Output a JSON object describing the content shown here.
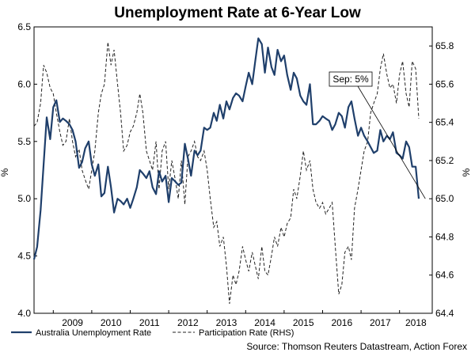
{
  "chart_data": {
    "type": "line",
    "title": "Unemployment Rate at 6-Year Low",
    "y_left_label": "%",
    "y_right_label": "%",
    "y_left_lim": [
      4.0,
      6.5
    ],
    "y_right_lim": [
      64.4,
      65.9
    ],
    "y_left_ticks": [
      "4.0",
      "4.5",
      "5.0",
      "5.5",
      "6.0",
      "6.5"
    ],
    "y_right_ticks": [
      "64.4",
      "64.6",
      "64.8",
      "65.0",
      "65.2",
      "65.4",
      "65.6",
      "65.8"
    ],
    "x_lim": [
      2008.5,
      2018.85
    ],
    "x_ticks": [
      "2009",
      "2010",
      "2011",
      "2012",
      "2013",
      "2014",
      "2015",
      "2016",
      "2017",
      "2018"
    ],
    "grid": false,
    "legend_position": "bottom",
    "source": "Source: Thomson Reuters Datastream, Action Forex",
    "annotation": {
      "label": "Sep: 5%",
      "point": [
        2018.67,
        5.0
      ]
    },
    "series": [
      {
        "name": "Australia Unemployment Rate",
        "axis": "left",
        "style": "solid",
        "color": "#1f3f6b",
        "points": [
          [
            2008.5,
            4.47
          ],
          [
            2008.58,
            4.58
          ],
          [
            2008.67,
            4.9
          ],
          [
            2008.75,
            5.3
          ],
          [
            2008.83,
            5.71
          ],
          [
            2008.92,
            5.52
          ],
          [
            2009.0,
            5.8
          ],
          [
            2009.08,
            5.86
          ],
          [
            2009.17,
            5.67
          ],
          [
            2009.25,
            5.7
          ],
          [
            2009.33,
            5.68
          ],
          [
            2009.42,
            5.65
          ],
          [
            2009.5,
            5.6
          ],
          [
            2009.58,
            5.5
          ],
          [
            2009.67,
            5.27
          ],
          [
            2009.75,
            5.32
          ],
          [
            2009.83,
            5.44
          ],
          [
            2009.92,
            5.5
          ],
          [
            2010.0,
            5.3
          ],
          [
            2010.08,
            5.2
          ],
          [
            2010.17,
            5.3
          ],
          [
            2010.25,
            5.02
          ],
          [
            2010.33,
            5.05
          ],
          [
            2010.42,
            5.28
          ],
          [
            2010.5,
            5.1
          ],
          [
            2010.58,
            4.88
          ],
          [
            2010.67,
            5.0
          ],
          [
            2010.75,
            4.98
          ],
          [
            2010.83,
            4.95
          ],
          [
            2010.92,
            5.0
          ],
          [
            2011.0,
            4.92
          ],
          [
            2011.08,
            5.0
          ],
          [
            2011.17,
            5.1
          ],
          [
            2011.25,
            5.25
          ],
          [
            2011.33,
            5.22
          ],
          [
            2011.42,
            5.18
          ],
          [
            2011.5,
            5.24
          ],
          [
            2011.58,
            5.1
          ],
          [
            2011.67,
            5.04
          ],
          [
            2011.75,
            5.24
          ],
          [
            2011.83,
            5.15
          ],
          [
            2011.92,
            5.2
          ],
          [
            2012.0,
            4.97
          ],
          [
            2012.08,
            5.18
          ],
          [
            2012.17,
            5.15
          ],
          [
            2012.25,
            5.12
          ],
          [
            2012.33,
            5.14
          ],
          [
            2012.42,
            5.48
          ],
          [
            2012.5,
            5.35
          ],
          [
            2012.58,
            5.2
          ],
          [
            2012.67,
            5.42
          ],
          [
            2012.75,
            5.38
          ],
          [
            2012.83,
            5.42
          ],
          [
            2012.92,
            5.62
          ],
          [
            2013.0,
            5.6
          ],
          [
            2013.08,
            5.62
          ],
          [
            2013.17,
            5.75
          ],
          [
            2013.25,
            5.68
          ],
          [
            2013.33,
            5.82
          ],
          [
            2013.42,
            5.7
          ],
          [
            2013.5,
            5.85
          ],
          [
            2013.58,
            5.78
          ],
          [
            2013.67,
            5.88
          ],
          [
            2013.75,
            5.92
          ],
          [
            2013.83,
            5.9
          ],
          [
            2013.92,
            5.85
          ],
          [
            2014.0,
            5.98
          ],
          [
            2014.08,
            6.1
          ],
          [
            2014.17,
            6.0
          ],
          [
            2014.25,
            6.2
          ],
          [
            2014.33,
            6.4
          ],
          [
            2014.42,
            6.35
          ],
          [
            2014.5,
            6.1
          ],
          [
            2014.58,
            6.32
          ],
          [
            2014.67,
            6.15
          ],
          [
            2014.75,
            6.08
          ],
          [
            2014.83,
            6.3
          ],
          [
            2014.92,
            6.2
          ],
          [
            2015.0,
            6.25
          ],
          [
            2015.08,
            6.08
          ],
          [
            2015.17,
            5.95
          ],
          [
            2015.25,
            6.1
          ],
          [
            2015.33,
            6.05
          ],
          [
            2015.42,
            5.9
          ],
          [
            2015.5,
            5.85
          ],
          [
            2015.58,
            5.82
          ],
          [
            2015.67,
            6.0
          ],
          [
            2015.75,
            5.65
          ],
          [
            2015.83,
            5.65
          ],
          [
            2015.92,
            5.68
          ],
          [
            2016.0,
            5.72
          ],
          [
            2016.08,
            5.7
          ],
          [
            2016.17,
            5.68
          ],
          [
            2016.25,
            5.6
          ],
          [
            2016.33,
            5.65
          ],
          [
            2016.42,
            5.75
          ],
          [
            2016.5,
            5.72
          ],
          [
            2016.58,
            5.62
          ],
          [
            2016.67,
            5.8
          ],
          [
            2016.75,
            5.85
          ],
          [
            2016.83,
            5.7
          ],
          [
            2016.92,
            5.55
          ],
          [
            2017.0,
            5.62
          ],
          [
            2017.08,
            5.55
          ],
          [
            2017.17,
            5.5
          ],
          [
            2017.25,
            5.45
          ],
          [
            2017.33,
            5.4
          ],
          [
            2017.42,
            5.42
          ],
          [
            2017.5,
            5.6
          ],
          [
            2017.58,
            5.5
          ],
          [
            2017.67,
            5.55
          ],
          [
            2017.75,
            5.52
          ],
          [
            2017.83,
            5.58
          ],
          [
            2017.92,
            5.4
          ],
          [
            2018.0,
            5.38
          ],
          [
            2018.08,
            5.35
          ],
          [
            2018.17,
            5.5
          ],
          [
            2018.25,
            5.45
          ],
          [
            2018.33,
            5.28
          ],
          [
            2018.42,
            5.28
          ],
          [
            2018.5,
            5.0
          ]
        ]
      },
      {
        "name": "Participation Rate (RHS)",
        "axis": "right",
        "style": "dashed",
        "color": "#222222",
        "points": [
          [
            2008.5,
            65.38
          ],
          [
            2008.58,
            65.4
          ],
          [
            2008.67,
            65.5
          ],
          [
            2008.75,
            65.7
          ],
          [
            2008.83,
            65.66
          ],
          [
            2008.92,
            65.58
          ],
          [
            2009.0,
            65.55
          ],
          [
            2009.08,
            65.45
          ],
          [
            2009.17,
            65.35
          ],
          [
            2009.25,
            65.28
          ],
          [
            2009.33,
            65.3
          ],
          [
            2009.42,
            65.42
          ],
          [
            2009.5,
            65.3
          ],
          [
            2009.58,
            65.22
          ],
          [
            2009.67,
            65.26
          ],
          [
            2009.75,
            65.15
          ],
          [
            2009.83,
            65.1
          ],
          [
            2009.92,
            65.05
          ],
          [
            2010.0,
            65.15
          ],
          [
            2010.08,
            65.25
          ],
          [
            2010.17,
            65.45
          ],
          [
            2010.25,
            65.55
          ],
          [
            2010.33,
            65.6
          ],
          [
            2010.42,
            65.82
          ],
          [
            2010.5,
            65.7
          ],
          [
            2010.58,
            65.78
          ],
          [
            2010.67,
            65.6
          ],
          [
            2010.75,
            65.45
          ],
          [
            2010.83,
            65.25
          ],
          [
            2010.92,
            65.28
          ],
          [
            2011.0,
            65.35
          ],
          [
            2011.08,
            65.38
          ],
          [
            2011.17,
            65.45
          ],
          [
            2011.25,
            65.55
          ],
          [
            2011.33,
            65.45
          ],
          [
            2011.42,
            65.25
          ],
          [
            2011.5,
            65.2
          ],
          [
            2011.58,
            65.15
          ],
          [
            2011.67,
            65.3
          ],
          [
            2011.75,
            65.05
          ],
          [
            2011.83,
            65.25
          ],
          [
            2011.92,
            65.3
          ],
          [
            2012.0,
            65.05
          ],
          [
            2012.08,
            65.2
          ],
          [
            2012.17,
            65.1
          ],
          [
            2012.25,
            65.0
          ],
          [
            2012.33,
            65.2
          ],
          [
            2012.42,
            64.97
          ],
          [
            2012.5,
            65.22
          ],
          [
            2012.58,
            65.25
          ],
          [
            2012.67,
            65.3
          ],
          [
            2012.75,
            65.22
          ],
          [
            2012.83,
            65.2
          ],
          [
            2012.92,
            65.25
          ],
          [
            2013.0,
            65.15
          ],
          [
            2013.08,
            65.0
          ],
          [
            2013.17,
            64.85
          ],
          [
            2013.25,
            64.88
          ],
          [
            2013.33,
            64.75
          ],
          [
            2013.42,
            64.8
          ],
          [
            2013.5,
            64.65
          ],
          [
            2013.58,
            64.45
          ],
          [
            2013.67,
            64.6
          ],
          [
            2013.75,
            64.55
          ],
          [
            2013.83,
            64.62
          ],
          [
            2013.92,
            64.75
          ],
          [
            2014.0,
            64.68
          ],
          [
            2014.08,
            64.62
          ],
          [
            2014.17,
            64.72
          ],
          [
            2014.25,
            64.65
          ],
          [
            2014.33,
            64.58
          ],
          [
            2014.42,
            64.75
          ],
          [
            2014.5,
            64.62
          ],
          [
            2014.58,
            64.6
          ],
          [
            2014.67,
            64.7
          ],
          [
            2014.75,
            64.8
          ],
          [
            2014.83,
            64.75
          ],
          [
            2014.92,
            64.85
          ],
          [
            2015.0,
            64.8
          ],
          [
            2015.08,
            64.87
          ],
          [
            2015.17,
            64.9
          ],
          [
            2015.25,
            65.05
          ],
          [
            2015.33,
            65.0
          ],
          [
            2015.42,
            65.12
          ],
          [
            2015.5,
            65.25
          ],
          [
            2015.58,
            65.15
          ],
          [
            2015.67,
            65.2
          ],
          [
            2015.75,
            65.05
          ],
          [
            2015.83,
            64.98
          ],
          [
            2015.92,
            64.95
          ],
          [
            2016.0,
            64.98
          ],
          [
            2016.08,
            64.92
          ],
          [
            2016.17,
            64.95
          ],
          [
            2016.25,
            64.98
          ],
          [
            2016.33,
            64.75
          ],
          [
            2016.42,
            64.5
          ],
          [
            2016.5,
            64.55
          ],
          [
            2016.58,
            64.72
          ],
          [
            2016.67,
            64.75
          ],
          [
            2016.75,
            64.68
          ],
          [
            2016.83,
            64.95
          ],
          [
            2016.92,
            65.05
          ],
          [
            2017.0,
            65.15
          ],
          [
            2017.08,
            65.25
          ],
          [
            2017.17,
            65.3
          ],
          [
            2017.25,
            65.45
          ],
          [
            2017.33,
            65.5
          ],
          [
            2017.42,
            65.55
          ],
          [
            2017.5,
            65.68
          ],
          [
            2017.58,
            65.76
          ],
          [
            2017.67,
            65.65
          ],
          [
            2017.75,
            65.58
          ],
          [
            2017.83,
            65.6
          ],
          [
            2017.92,
            65.5
          ],
          [
            2018.0,
            65.65
          ],
          [
            2018.08,
            65.72
          ],
          [
            2018.17,
            65.55
          ],
          [
            2018.25,
            65.48
          ],
          [
            2018.33,
            65.72
          ],
          [
            2018.42,
            65.68
          ],
          [
            2018.5,
            65.42
          ]
        ]
      }
    ]
  }
}
